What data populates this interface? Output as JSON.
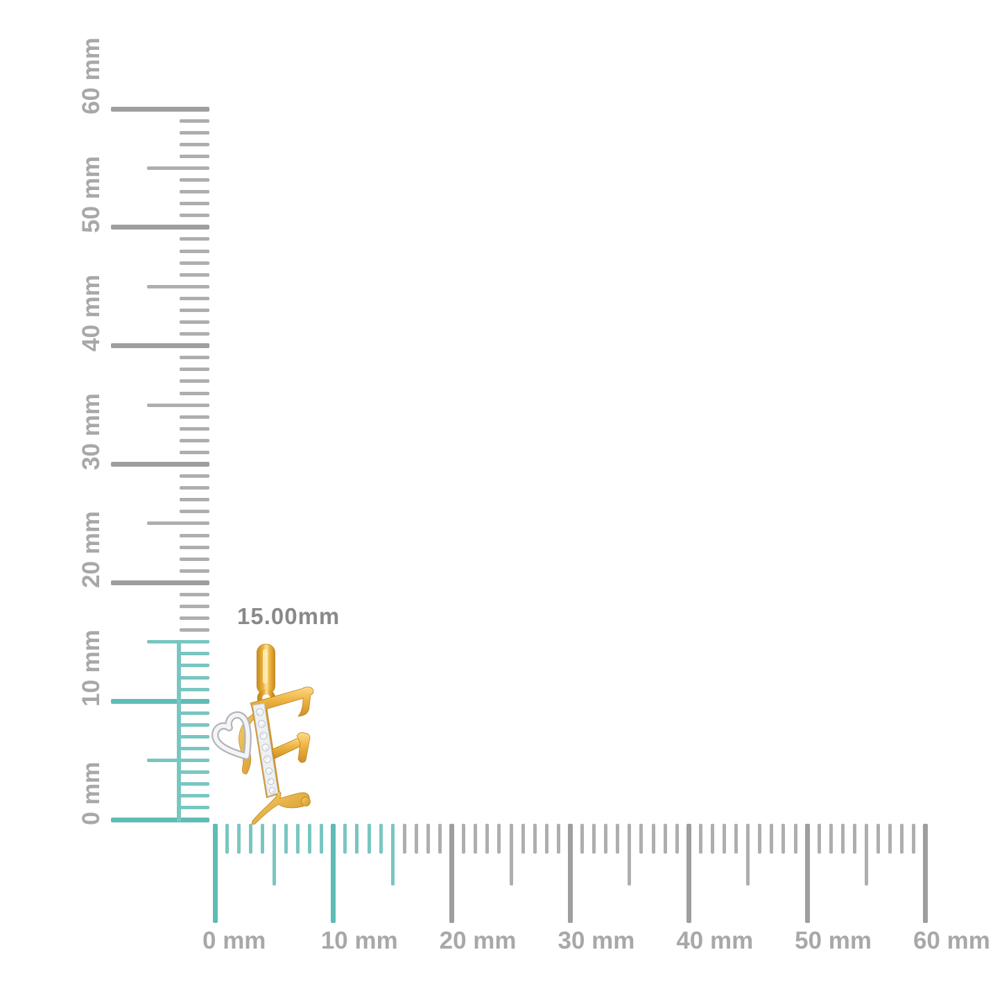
{
  "scene": {
    "type": "product-size-guide",
    "background": "#ffffff",
    "description": "Yellow gold initial F pendant with white-metal heart accent and diamond-set stem, shown against millimeter rulers"
  },
  "measurement": {
    "label": "15.00mm",
    "color": "#898989"
  },
  "rulers": {
    "unit": "mm",
    "min_mm": 0,
    "max_mm": 60,
    "minor_step_mm": 1,
    "medium_step_mm": 5,
    "major_step_mm": 10,
    "highlight_extent_mm": 15,
    "colors": {
      "highlight": "#79c6c1",
      "highlight_strong": "#5ebcb6",
      "tick_minor": "#aeaeae",
      "tick_major": "#9e9e9e",
      "label": "#a8a8a8"
    },
    "vertical": {
      "labels": [
        "0 mm",
        "10 mm",
        "20 mm",
        "30 mm",
        "40 mm",
        "50 mm",
        "60 mm"
      ]
    },
    "horizontal": {
      "labels": [
        "0 mm",
        "10 mm",
        "20 mm",
        "30 mm",
        "40 mm",
        "50 mm",
        "60 mm"
      ]
    }
  },
  "pendant": {
    "name": "letter-f-heart-diamond-pendant",
    "initial": "F",
    "colors": {
      "gold": "#e8ab38",
      "gold_light": "#ffe49a",
      "gold_dark": "#c4861a",
      "white_metal": "#f4f4f6",
      "white_metal_rim": "#b2b4b9",
      "diamond_strip": "#eef0f2"
    }
  }
}
